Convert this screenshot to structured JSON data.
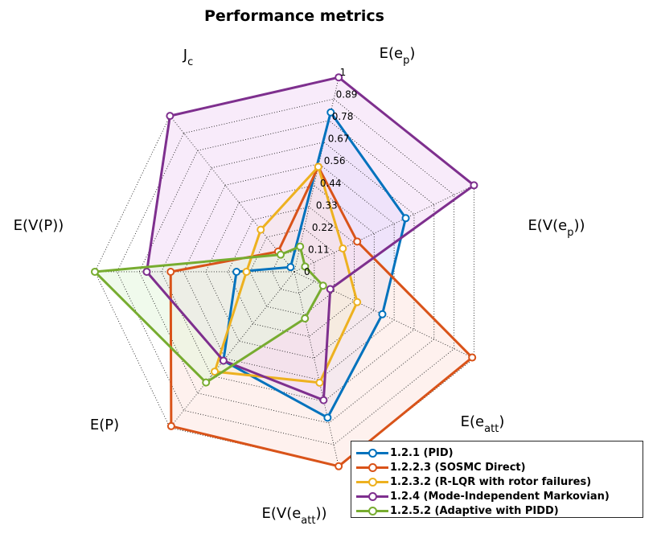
{
  "chart_data": {
    "type": "radar",
    "title": "Performance metrics",
    "axes": [
      {
        "main": "J",
        "sub": "c",
        "suffix": ""
      },
      {
        "main": "E(e",
        "sub": "p",
        "suffix": ")"
      },
      {
        "main": "E(V(e",
        "sub": "p",
        "suffix": "))"
      },
      {
        "main": "E(e",
        "sub": "att",
        "suffix": ")"
      },
      {
        "main": "E(V(e",
        "sub": "att",
        "suffix": "))"
      },
      {
        "main": "E(P)",
        "sub": "",
        "suffix": ""
      },
      {
        "main": "E(V(P))",
        "sub": "",
        "suffix": ""
      }
    ],
    "rlim": [
      0,
      1
    ],
    "ticks": [
      "0",
      "0.11",
      "0.22",
      "0.33",
      "0.44",
      "0.56",
      "0.67",
      "0.78",
      "0.89",
      "1"
    ],
    "series": [
      {
        "name": "1.2.1 (PID)",
        "color": "#0072BD",
        "fill": "#dde0ff",
        "values": [
          0.03,
          0.82,
          0.62,
          0.49,
          0.75,
          0.57,
          0.29
        ]
      },
      {
        "name": "1.2.2.3 (SOSMC Direct)",
        "color": "#D95319",
        "fill": "#fde5e0",
        "values": [
          0.13,
          0.54,
          0.35,
          0.99,
          1.0,
          0.99,
          0.62
        ]
      },
      {
        "name": "1.2.3.2 (R-LQR with rotor failures)",
        "color": "#EDB120",
        "fill": "#f5ecd5",
        "values": [
          0.27,
          0.54,
          0.27,
          0.35,
          0.57,
          0.64,
          0.24
        ]
      },
      {
        "name": "1.2.4 (Mode-Independent Markovian)",
        "color": "#7E2F8E",
        "fill": "#f2dbf5",
        "values": [
          1.0,
          1.0,
          1.0,
          0.2,
          0.66,
          0.57,
          0.74
        ]
      },
      {
        "name": "1.2.5.2 (Adaptive with PIDD)",
        "color": "#77AC30",
        "fill": "#e4f5dc",
        "values": [
          0.11,
          0.13,
          0.06,
          0.16,
          0.24,
          0.71,
          1.0
        ]
      }
    ],
    "grid": true,
    "legend_position": "bottom-right"
  }
}
